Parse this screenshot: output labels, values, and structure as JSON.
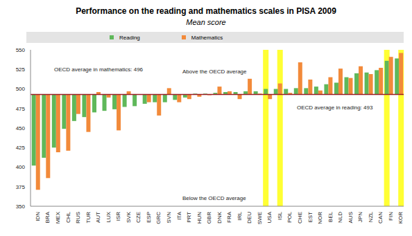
{
  "chart_data": {
    "type": "bar",
    "title": "Performance on the reading and mathematics scales in PISA 2009",
    "subtitle": "Mean score",
    "categories": [
      "IDN",
      "BRA",
      "MEX",
      "CHL",
      "RUS",
      "TUR",
      "AUT",
      "LUX",
      "ISR",
      "SVK",
      "CZE",
      "ESP",
      "GRC",
      "SVN",
      "ITA",
      "PRT",
      "HUN",
      "GBR",
      "DNK",
      "FRA",
      "IRL",
      "DEU",
      "SWE",
      "USA",
      "ISL",
      "POL",
      "CHE",
      "EST",
      "NOR",
      "BEL",
      "NLD",
      "AUS",
      "JPN",
      "NZL",
      "CAN",
      "FIN",
      "KOR"
    ],
    "series": [
      {
        "name": "Reading",
        "color": "#5fb85a",
        "values": [
          402,
          412,
          425,
          449,
          459,
          464,
          470,
          472,
          474,
          477,
          478,
          481,
          483,
          483,
          486,
          489,
          494,
          494,
          495,
          496,
          496,
          497,
          497,
          500,
          500,
          500,
          501,
          501,
          503,
          506,
          508,
          515,
          520,
          521,
          524,
          536,
          539
        ]
      },
      {
        "name": "Mathematics",
        "color": "#f28a3a",
        "values": [
          371,
          386,
          419,
          421,
          468,
          445,
          496,
          489,
          447,
          497,
          493,
          483,
          466,
          501,
          483,
          487,
          490,
          492,
          503,
          497,
          487,
          513,
          494,
          487,
          507,
          495,
          534,
          512,
          498,
          515,
          526,
          514,
          529,
          519,
          527,
          541,
          546
        ]
      }
    ],
    "baseline": 493,
    "highlight": [
      "USA",
      "FIN"
    ],
    "annotations": [
      "OECD average in mathematics: 496",
      "Above the OECD average",
      "OECD average in reading: 493",
      "Below the OECD average"
    ],
    "ylim": [
      350,
      550
    ],
    "yticks": [
      350,
      375,
      400,
      425,
      450,
      475,
      500,
      525,
      550
    ],
    "grid": false
  }
}
